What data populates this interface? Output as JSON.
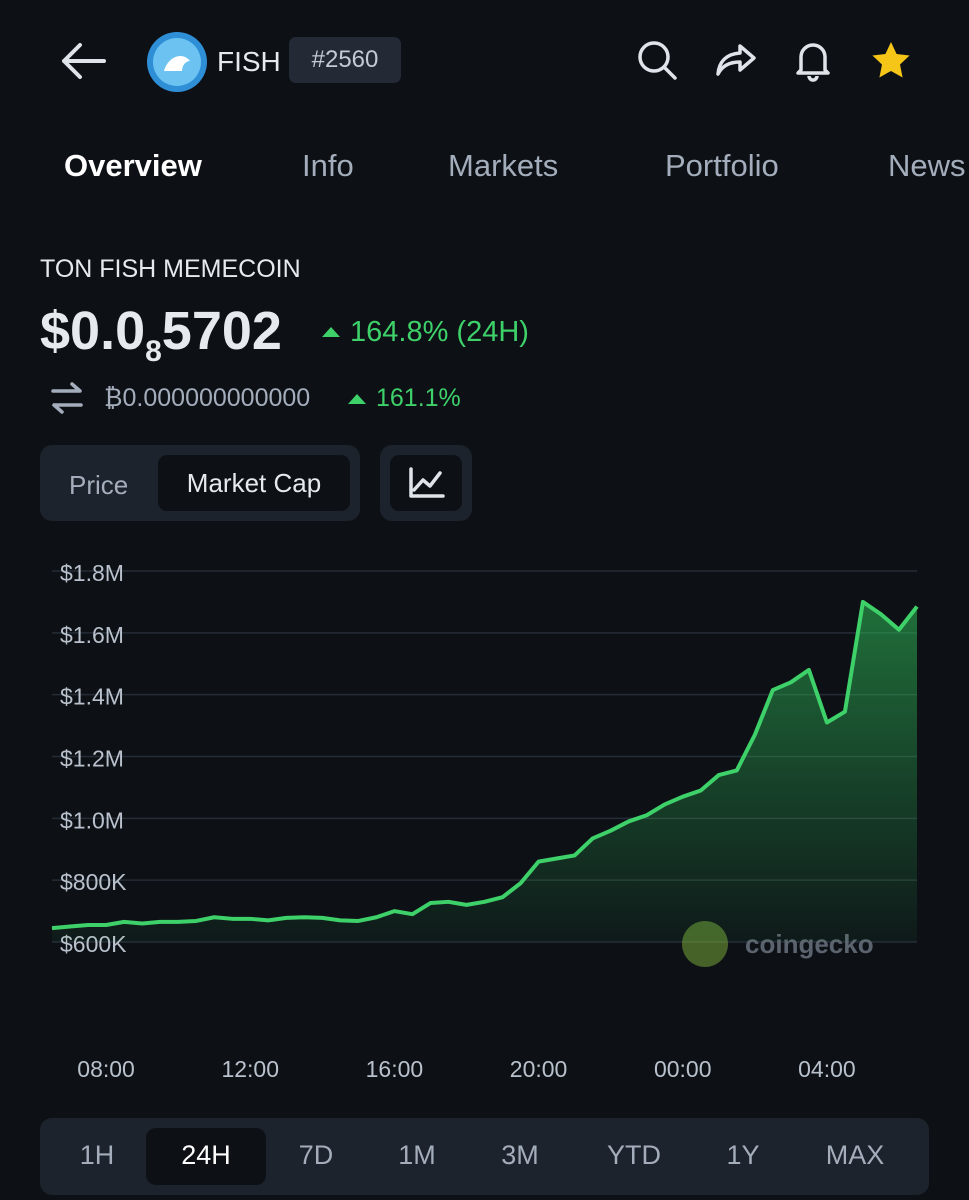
{
  "header": {
    "coin": "FISH",
    "rank": "#2560"
  },
  "tabs": [
    "Overview",
    "Info",
    "Markets",
    "Portfolio",
    "News"
  ],
  "coin_name": "TON FISH MEMECOIN",
  "price": {
    "lead": "$0.0",
    "zeros": "8",
    "digits": "5702"
  },
  "change_24h": "164.8% (24H)",
  "btc_price": "₿0.000000000000",
  "btc_change": "161.1%",
  "chart_toggle": [
    "Price",
    "Market Cap"
  ],
  "watermark": "coingecko",
  "ranges": [
    "1H",
    "24H",
    "7D",
    "1M",
    "3M",
    "YTD",
    "1Y",
    "MAX"
  ],
  "chart_data": {
    "type": "line",
    "color": "#3ed16a",
    "x": [
      "06:30",
      "07:00",
      "07:30",
      "08:00",
      "08:30",
      "09:00",
      "09:30",
      "10:00",
      "10:30",
      "11:00",
      "11:30",
      "12:00",
      "12:30",
      "13:00",
      "13:30",
      "14:00",
      "14:30",
      "15:00",
      "15:30",
      "16:00",
      "16:30",
      "17:00",
      "17:30",
      "18:00",
      "18:30",
      "19:00",
      "19:30",
      "20:00",
      "20:30",
      "21:00",
      "21:30",
      "22:00",
      "22:30",
      "23:00",
      "23:30",
      "00:00",
      "00:30",
      "01:00",
      "01:30",
      "02:00",
      "02:30",
      "03:00",
      "03:30",
      "04:00",
      "04:30",
      "05:00",
      "05:30",
      "06:00",
      "06:30"
    ],
    "values": [
      645000,
      650000,
      655000,
      655000,
      665000,
      660000,
      665000,
      665000,
      668000,
      680000,
      675000,
      675000,
      670000,
      678000,
      680000,
      678000,
      670000,
      668000,
      680000,
      700000,
      690000,
      726000,
      730000,
      720000,
      730000,
      745000,
      790000,
      860000,
      870000,
      880000,
      935000,
      960000,
      990000,
      1010000,
      1045000,
      1070000,
      1090000,
      1140000,
      1155000,
      1270000,
      1415000,
      1440000,
      1480000,
      1310000,
      1345000,
      1700000,
      1660000,
      1610000,
      1685000
    ],
    "ylim": [
      600000,
      1800000
    ],
    "yticks": [
      {
        "value": 600000,
        "label": "$600K"
      },
      {
        "value": 800000,
        "label": "$800K"
      },
      {
        "value": 1000000,
        "label": "$1.0M"
      },
      {
        "value": 1200000,
        "label": "$1.2M"
      },
      {
        "value": 1400000,
        "label": "$1.4M"
      },
      {
        "value": 1600000,
        "label": "$1.6M"
      },
      {
        "value": 1800000,
        "label": "$1.8M"
      }
    ],
    "xticks": [
      "08:00",
      "12:00",
      "16:00",
      "20:00",
      "00:00",
      "04:00"
    ],
    "grid": true
  }
}
